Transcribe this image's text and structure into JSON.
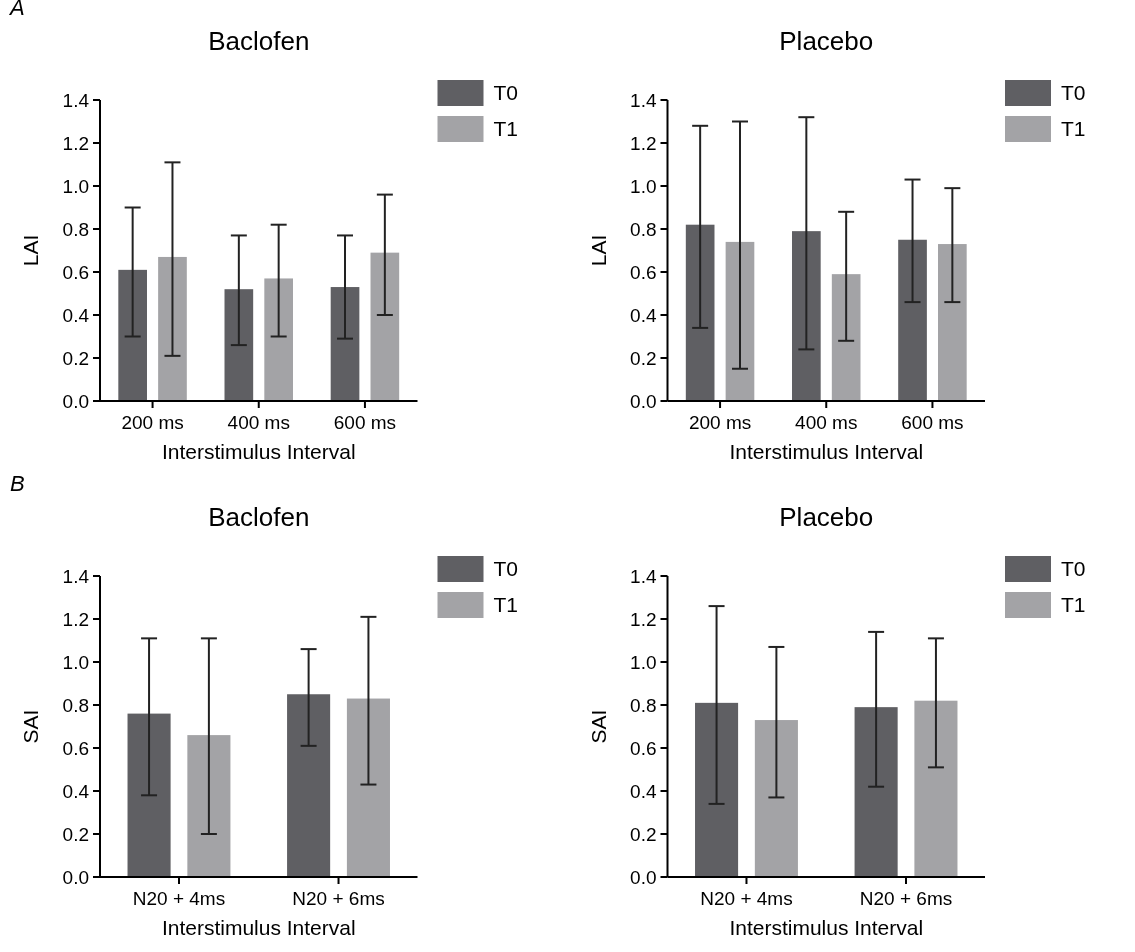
{
  "chart_data": [
    {
      "type": "bar",
      "title": "Baclofen",
      "xlabel": "Interstimulus Interval",
      "ylabel": "LAI",
      "annotations": [
        "A"
      ],
      "categories": [
        "200 ms",
        "400 ms",
        "600 ms"
      ],
      "series": [
        {
          "name": "T0",
          "color": "#5f5f63",
          "values": [
            0.61,
            0.52,
            0.53
          ],
          "errors": [
            [
              0.3,
              0.9
            ],
            [
              0.26,
              0.77
            ],
            [
              0.29,
              0.77
            ]
          ]
        },
        {
          "name": "T1",
          "color": "#a3a3a6",
          "values": [
            0.67,
            0.57,
            0.69
          ],
          "errors": [
            [
              0.21,
              1.11
            ],
            [
              0.3,
              0.82
            ],
            [
              0.4,
              0.96
            ]
          ]
        }
      ],
      "ylim": [
        0,
        1.4
      ],
      "yticks": [
        {
          "value": 0,
          "label": "0.0"
        },
        {
          "value": 0.2,
          "label": "0.2"
        },
        {
          "value": 0.4,
          "label": "0.4"
        },
        {
          "value": 0.6,
          "label": "0.6"
        },
        {
          "value": 0.8,
          "label": "0.8"
        },
        {
          "value": 1,
          "label": "1.0"
        },
        {
          "value": 1.2,
          "label": "1.2"
        },
        {
          "value": 1.4,
          "label": "1.4"
        }
      ],
      "grid": false,
      "legend": "top right"
    },
    {
      "type": "bar",
      "title": "Placebo",
      "xlabel": "Interstimulus Interval",
      "ylabel": "LAI",
      "categories": [
        "200 ms",
        "400 ms",
        "600 ms"
      ],
      "series": [
        {
          "name": "T0",
          "color": "#5f5f63",
          "values": [
            0.82,
            0.79,
            0.75
          ],
          "errors": [
            [
              0.34,
              1.28
            ],
            [
              0.24,
              1.32
            ],
            [
              0.46,
              1.03
            ]
          ]
        },
        {
          "name": "T1",
          "color": "#a3a3a6",
          "values": [
            0.74,
            0.59,
            0.73
          ],
          "errors": [
            [
              0.15,
              1.3
            ],
            [
              0.28,
              0.88
            ],
            [
              0.46,
              0.99
            ]
          ]
        }
      ],
      "ylim": [
        0,
        1.4
      ],
      "yticks": [
        {
          "value": 0,
          "label": "0.0"
        },
        {
          "value": 0.2,
          "label": "0.2"
        },
        {
          "value": 0.4,
          "label": "0.4"
        },
        {
          "value": 0.6,
          "label": "0.6"
        },
        {
          "value": 0.8,
          "label": "0.8"
        },
        {
          "value": 1,
          "label": "1.0"
        },
        {
          "value": 1.2,
          "label": "1.2"
        },
        {
          "value": 1.4,
          "label": "1.4"
        }
      ],
      "grid": false,
      "legend": "top right"
    },
    {
      "type": "bar",
      "title": "Baclofen",
      "xlabel": "Interstimulus Interval",
      "ylabel": "SAI",
      "annotations": [
        "B"
      ],
      "categories": [
        "N20 + 4ms",
        "N20 + 6ms"
      ],
      "series": [
        {
          "name": "T0",
          "color": "#5f5f63",
          "values": [
            0.76,
            0.85
          ],
          "errors": [
            [
              0.38,
              1.11
            ],
            [
              0.61,
              1.06
            ]
          ]
        },
        {
          "name": "T1",
          "color": "#a3a3a6",
          "values": [
            0.66,
            0.83
          ],
          "errors": [
            [
              0.2,
              1.11
            ],
            [
              0.43,
              1.21
            ]
          ]
        }
      ],
      "ylim": [
        0,
        1.4
      ],
      "yticks": [
        {
          "value": 0,
          "label": "0.0"
        },
        {
          "value": 0.2,
          "label": "0.2"
        },
        {
          "value": 0.4,
          "label": "0.4"
        },
        {
          "value": 0.6,
          "label": "0.6"
        },
        {
          "value": 0.8,
          "label": "0.8"
        },
        {
          "value": 1,
          "label": "1.0"
        },
        {
          "value": 1.2,
          "label": "1.2"
        },
        {
          "value": 1.4,
          "label": "1.4"
        }
      ],
      "grid": false,
      "legend": "top right"
    },
    {
      "type": "bar",
      "title": "Placebo",
      "xlabel": "Interstimulus Interval",
      "ylabel": "SAI",
      "categories": [
        "N20 + 4ms",
        "N20 + 6ms"
      ],
      "series": [
        {
          "name": "T0",
          "color": "#5f5f63",
          "values": [
            0.81,
            0.79
          ],
          "errors": [
            [
              0.34,
              1.26
            ],
            [
              0.42,
              1.14
            ]
          ]
        },
        {
          "name": "T1",
          "color": "#a3a3a6",
          "values": [
            0.73,
            0.82
          ],
          "errors": [
            [
              0.37,
              1.07
            ],
            [
              0.51,
              1.11
            ]
          ]
        }
      ],
      "ylim": [
        0,
        1.4
      ],
      "yticks": [
        {
          "value": 0,
          "label": "0.0"
        },
        {
          "value": 0.2,
          "label": "0.2"
        },
        {
          "value": 0.4,
          "label": "0.4"
        },
        {
          "value": 0.6,
          "label": "0.6"
        },
        {
          "value": 0.8,
          "label": "0.8"
        },
        {
          "value": 1,
          "label": "1.0"
        },
        {
          "value": 1.2,
          "label": "1.2"
        },
        {
          "value": 1.4,
          "label": "1.4"
        }
      ],
      "grid": false,
      "legend": "top right"
    }
  ]
}
